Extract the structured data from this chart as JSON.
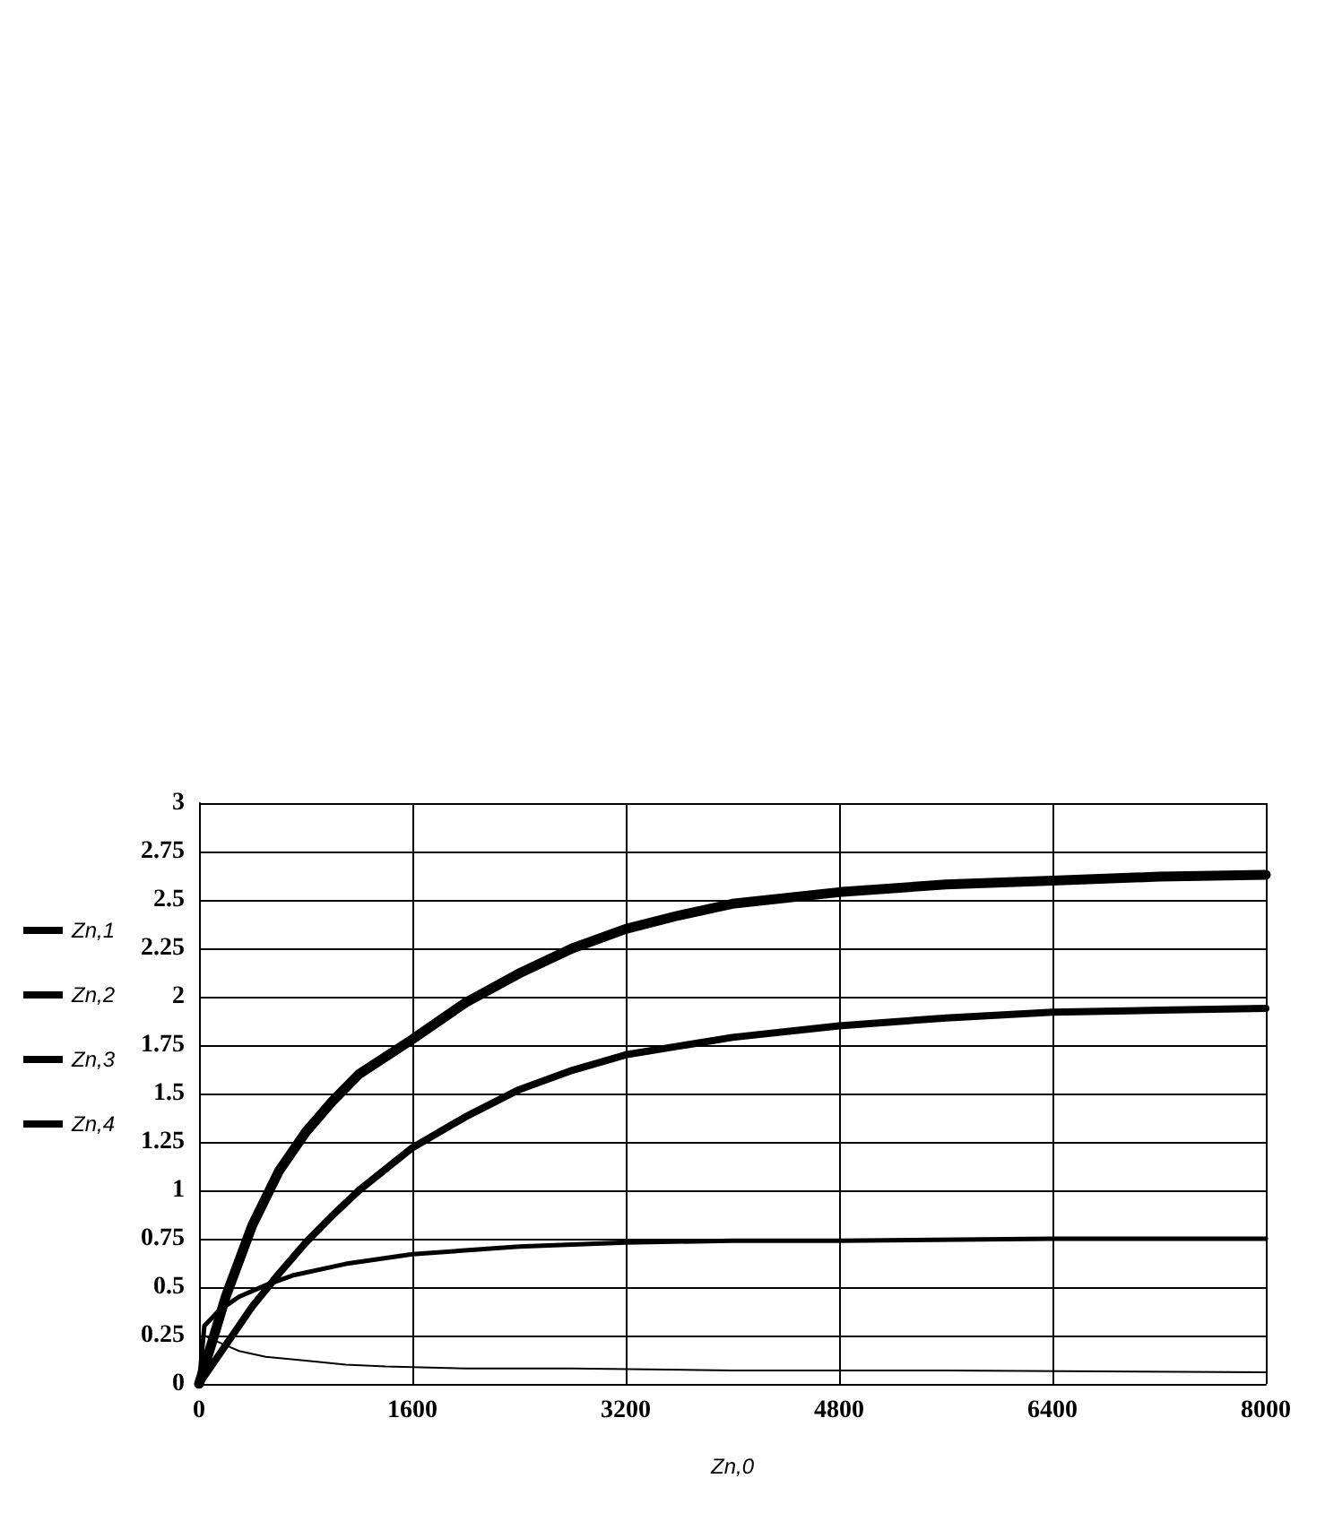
{
  "chart_data": {
    "type": "line",
    "xlabel": "Zn,0",
    "xlim": [
      0,
      8000
    ],
    "xticks": [
      0,
      1600,
      3200,
      4800,
      6400,
      8000
    ],
    "ylim": [
      0,
      3
    ],
    "yticks": [
      0,
      0.25,
      0.5,
      0.75,
      1,
      1.25,
      1.5,
      1.75,
      2,
      2.25,
      2.5,
      2.75,
      3
    ],
    "grid": true,
    "legend": "left",
    "marker": "none",
    "line_style": "solid",
    "series": [
      {
        "name": "Zn,1",
        "color": "#000000",
        "x": [
          0,
          40,
          100,
          200,
          300,
          500,
          800,
          1100,
          1400,
          2000,
          2800,
          4000,
          5600,
          8000
        ],
        "values": [
          0,
          0.25,
          0.23,
          0.2,
          0.17,
          0.14,
          0.12,
          0.1,
          0.09,
          0.08,
          0.08,
          0.07,
          0.07,
          0.06
        ]
      },
      {
        "name": "Zn,2",
        "color": "#000000",
        "x": [
          0,
          40,
          150,
          300,
          500,
          700,
          1100,
          1600,
          2400,
          3200,
          4000,
          4800,
          6400,
          8000
        ],
        "values": [
          0,
          0.3,
          0.38,
          0.45,
          0.51,
          0.56,
          0.62,
          0.67,
          0.71,
          0.73,
          0.74,
          0.74,
          0.75,
          0.75
        ]
      },
      {
        "name": "Zn,3",
        "color": "#000000",
        "x": [
          0,
          200,
          400,
          600,
          800,
          1000,
          1200,
          1600,
          2000,
          2400,
          2800,
          3200,
          4000,
          4800,
          5600,
          6400,
          7200,
          8000
        ],
        "values": [
          0,
          0.2,
          0.4,
          0.57,
          0.73,
          0.87,
          1.0,
          1.22,
          1.38,
          1.52,
          1.62,
          1.7,
          1.79,
          1.85,
          1.89,
          1.92,
          1.93,
          1.94
        ]
      },
      {
        "name": "Zn,4",
        "color": "#000000",
        "x": [
          0,
          100,
          200,
          400,
          600,
          800,
          1000,
          1200,
          1600,
          2000,
          2400,
          2800,
          3200,
          3600,
          4000,
          4800,
          5600,
          6400,
          7200,
          8000
        ],
        "values": [
          0,
          0.22,
          0.45,
          0.82,
          1.1,
          1.3,
          1.46,
          1.6,
          1.78,
          1.97,
          2.12,
          2.25,
          2.35,
          2.42,
          2.48,
          2.54,
          2.58,
          2.6,
          2.62,
          2.63
        ]
      }
    ]
  }
}
